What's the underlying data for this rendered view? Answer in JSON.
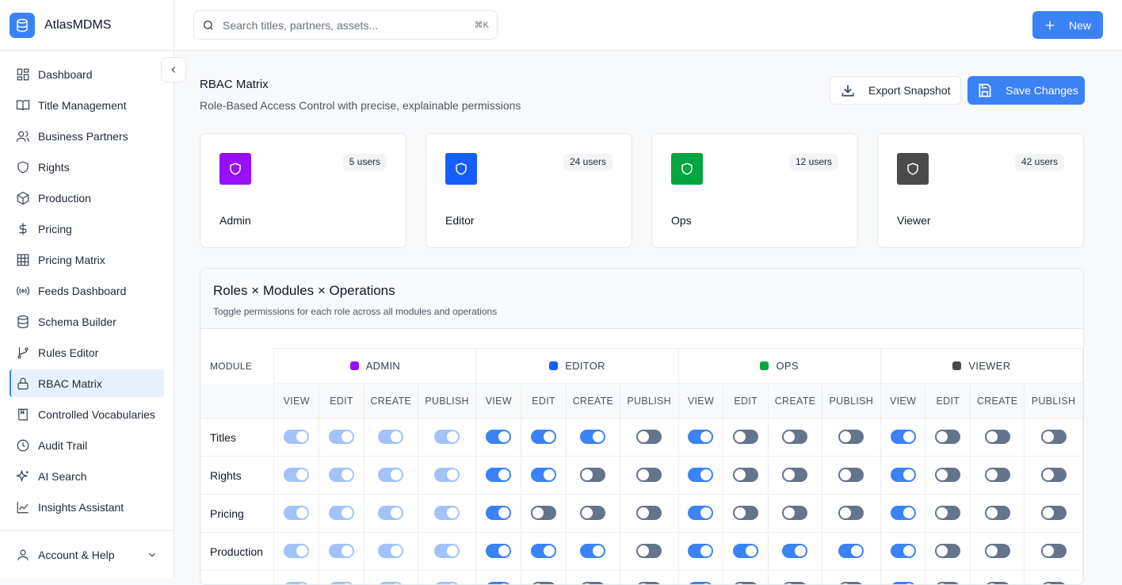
{
  "app": {
    "name": "AtlasMDMS"
  },
  "sidebar": {
    "items": [
      {
        "label": "Dashboard",
        "icon": "dashboard-icon"
      },
      {
        "label": "Title Management",
        "icon": "book-icon"
      },
      {
        "label": "Business Partners",
        "icon": "users-icon"
      },
      {
        "label": "Rights",
        "icon": "shield-icon"
      },
      {
        "label": "Production",
        "icon": "box-icon"
      },
      {
        "label": "Pricing",
        "icon": "dollar-icon"
      },
      {
        "label": "Pricing Matrix",
        "icon": "grid-icon"
      },
      {
        "label": "Feeds Dashboard",
        "icon": "radio-icon"
      },
      {
        "label": "Schema Builder",
        "icon": "database-icon"
      },
      {
        "label": "Rules Editor",
        "icon": "git-branch-icon"
      },
      {
        "label": "RBAC Matrix",
        "icon": "lock-icon",
        "active": true
      },
      {
        "label": "Controlled Vocabularies",
        "icon": "bookmark-book-icon"
      },
      {
        "label": "Audit Trail",
        "icon": "clock-icon"
      },
      {
        "label": "AI Search",
        "icon": "sparkles-icon"
      },
      {
        "label": "Insights Assistant",
        "icon": "chart-line-icon"
      }
    ],
    "account": "Account & Help"
  },
  "header": {
    "search_placeholder": "Search titles, partners, assets...",
    "shortcut": "⌘K",
    "new_label": "New"
  },
  "page": {
    "title": "RBAC Matrix",
    "subtitle": "Role-Based Access Control with precise, explainable permissions",
    "export_label": "Export Snapshot",
    "save_label": "Save Changes"
  },
  "roles": [
    {
      "name": "Admin",
      "users": "5 users",
      "color": "#9810fa"
    },
    {
      "name": "Editor",
      "users": "24 users",
      "color": "#155dfc"
    },
    {
      "name": "Ops",
      "users": "12 users",
      "color": "#00a63e"
    },
    {
      "name": "Viewer",
      "users": "42 users",
      "color": "#4a4a4a"
    }
  ],
  "matrix": {
    "title": "Roles × Modules × Operations",
    "subtitle": "Toggle permissions for each role across all modules and operations",
    "module_header": "MODULE",
    "role_headers": [
      "ADMIN",
      "EDITOR",
      "OPS",
      "VIEWER"
    ],
    "operations": [
      "VIEW",
      "EDIT",
      "CREATE",
      "PUBLISH"
    ],
    "rows": [
      {
        "module": "Titles",
        "perms": [
          [
            1,
            1,
            1,
            1
          ],
          [
            1,
            1,
            1,
            0
          ],
          [
            1,
            0,
            0,
            0
          ],
          [
            1,
            0,
            0,
            0
          ]
        ]
      },
      {
        "module": "Rights",
        "perms": [
          [
            1,
            1,
            1,
            1
          ],
          [
            1,
            1,
            0,
            0
          ],
          [
            1,
            0,
            0,
            0
          ],
          [
            1,
            0,
            0,
            0
          ]
        ]
      },
      {
        "module": "Pricing",
        "perms": [
          [
            1,
            1,
            1,
            1
          ],
          [
            1,
            0,
            0,
            0
          ],
          [
            1,
            0,
            0,
            0
          ],
          [
            1,
            0,
            0,
            0
          ]
        ]
      },
      {
        "module": "Production",
        "perms": [
          [
            1,
            1,
            1,
            1
          ],
          [
            1,
            1,
            1,
            0
          ],
          [
            1,
            1,
            1,
            1
          ],
          [
            1,
            0,
            0,
            0
          ]
        ]
      },
      {
        "module": "",
        "perms": [
          [
            1,
            1,
            1,
            1
          ],
          [
            1,
            0,
            0,
            0
          ],
          [
            1,
            0,
            0,
            0
          ],
          [
            1,
            0,
            0,
            0
          ]
        ]
      }
    ],
    "admin_locked": true
  }
}
